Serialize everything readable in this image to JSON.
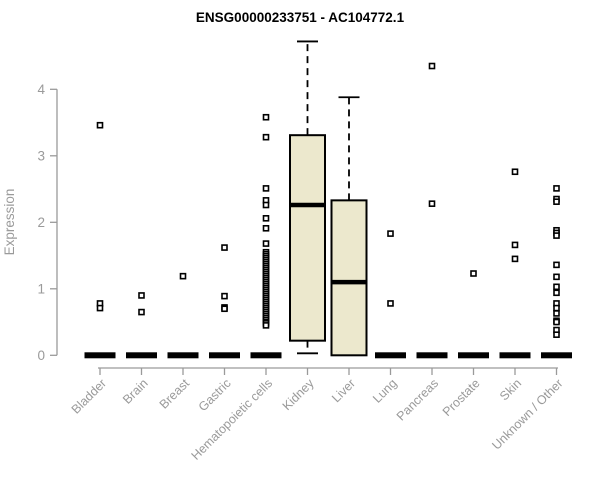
{
  "title": "ENSG00000233751 - AC104772.1",
  "chart_data": {
    "type": "boxplot",
    "title": "ENSG00000233751 - AC104772.1",
    "xlabel": "",
    "ylabel": "Expression",
    "ylim": [
      0,
      4.9
    ],
    "yticks": [
      0,
      1,
      2,
      3,
      4
    ],
    "grid": false,
    "legend": "none",
    "categories": [
      "Bladder",
      "Brain",
      "Breast",
      "Gastric",
      "Hematopoietic cells",
      "Kidney",
      "Liver",
      "Lung",
      "Pancreas",
      "Prostate",
      "Skin",
      "Unknown / Other"
    ],
    "boxes": [
      {
        "category": "Bladder",
        "q1": 0,
        "median": 0,
        "q3": 0,
        "whisker_low": 0,
        "whisker_high": 0,
        "outliers": [
          3.46,
          0.78,
          0.71
        ]
      },
      {
        "category": "Brain",
        "q1": 0,
        "median": 0,
        "q3": 0,
        "whisker_low": 0,
        "whisker_high": 0,
        "outliers": [
          0.9,
          0.65
        ]
      },
      {
        "category": "Breast",
        "q1": 0,
        "median": 0,
        "q3": 0,
        "whisker_low": 0,
        "whisker_high": 0,
        "outliers": [
          1.19
        ]
      },
      {
        "category": "Gastric",
        "q1": 0,
        "median": 0,
        "q3": 0,
        "whisker_low": 0,
        "whisker_high": 0,
        "outliers": [
          1.62,
          0.89,
          0.72,
          0.7
        ]
      },
      {
        "category": "Hematopoietic cells",
        "q1": 0,
        "median": 0,
        "q3": 0,
        "whisker_low": 0,
        "whisker_high": 0,
        "outliers": [
          3.58,
          3.28,
          2.51,
          2.33,
          2.26,
          2.06,
          1.91,
          1.68,
          1.55,
          1.52,
          1.49,
          1.46,
          1.43,
          1.4,
          1.37,
          1.34,
          1.31,
          1.28,
          1.25,
          1.22,
          1.19,
          1.16,
          1.13,
          1.1,
          1.07,
          1.04,
          1.01,
          0.98,
          0.95,
          0.92,
          0.89,
          0.86,
          0.83,
          0.8,
          0.77,
          0.74,
          0.71,
          0.68,
          0.65,
          0.62,
          0.59,
          0.56,
          0.53,
          0.5,
          0.48,
          0.45
        ]
      },
      {
        "category": "Kidney",
        "q1": 0.22,
        "median": 2.26,
        "q3": 3.31,
        "whisker_low": 0.03,
        "whisker_high": 4.72,
        "outliers": []
      },
      {
        "category": "Liver",
        "q1": 0.0,
        "median": 1.1,
        "q3": 2.33,
        "whisker_low": 0.0,
        "whisker_high": 3.88,
        "outliers": []
      },
      {
        "category": "Lung",
        "q1": 0,
        "median": 0,
        "q3": 0,
        "whisker_low": 0,
        "whisker_high": 0,
        "outliers": [
          1.83,
          0.78
        ]
      },
      {
        "category": "Pancreas",
        "q1": 0,
        "median": 0,
        "q3": 0,
        "whisker_low": 0,
        "whisker_high": 0,
        "outliers": [
          4.35,
          2.28
        ]
      },
      {
        "category": "Prostate",
        "q1": 0,
        "median": 0,
        "q3": 0,
        "whisker_low": 0,
        "whisker_high": 0,
        "outliers": [
          1.23
        ]
      },
      {
        "category": "Skin",
        "q1": 0,
        "median": 0,
        "q3": 0,
        "whisker_low": 0,
        "whisker_high": 0,
        "outliers": [
          2.76,
          1.66,
          1.45
        ]
      },
      {
        "category": "Unknown / Other",
        "q1": 0,
        "median": 0,
        "q3": 0,
        "whisker_low": 0,
        "whisker_high": 0,
        "outliers": [
          2.51,
          2.35,
          2.31,
          1.88,
          1.84,
          1.8,
          1.36,
          1.18,
          1.03,
          0.94,
          0.78,
          0.71,
          0.63,
          0.52,
          0.5,
          0.38,
          0.31
        ]
      }
    ],
    "colors": {
      "box_fill": "#ece8cd",
      "box_stroke": "#000000",
      "median": "#000000",
      "axis": "#9a9a9a",
      "tick_text": "#9a9a9a",
      "title_text": "#000000",
      "outlier_stroke": "#000000",
      "outlier_fill": "#ffffff",
      "background": "#ffffff"
    }
  }
}
